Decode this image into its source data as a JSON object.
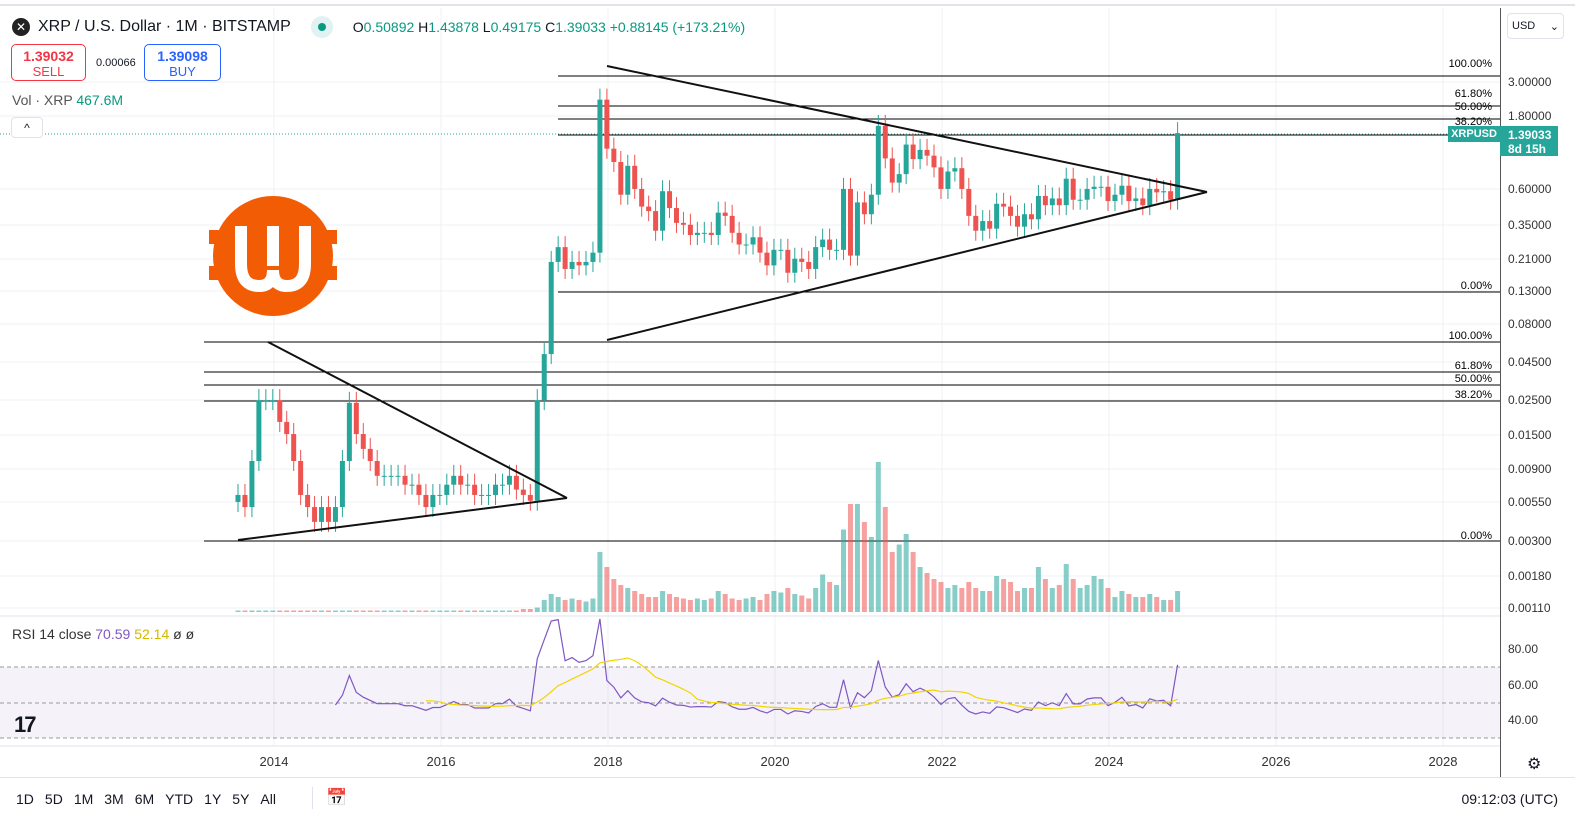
{
  "header": {
    "symbol": "XRP / U.S. Dollar · 1M · BITSTAMP",
    "open_label": "O",
    "open": "0.50892",
    "high_label": "H",
    "high": "1.43878",
    "low_label": "L",
    "low": "0.49175",
    "close_label": "C",
    "close": "1.39033",
    "change": "+0.88145 (+173.21%)"
  },
  "trade": {
    "sell_price": "1.39032",
    "sell_label": "SELL",
    "spread": "0.00066",
    "buy_price": "1.39098",
    "buy_label": "BUY"
  },
  "volume_legend": {
    "label": "Vol · XRP",
    "value": "467.6M"
  },
  "currency": "USD",
  "price_axis": [
    "3.00000",
    "1.80000",
    "0.60000",
    "0.35000",
    "0.21000",
    "0.13000",
    "0.08000",
    "0.04500",
    "0.02500",
    "0.01500",
    "0.00900",
    "0.00550",
    "0.00300",
    "0.00180",
    "0.00110"
  ],
  "price_tag": {
    "symbol": "XRPUSD",
    "price": "1.39033",
    "countdown": "8d 15h"
  },
  "fib_upper": [
    "100.00%",
    "61.80%",
    "50.00%",
    "38.20%",
    "0.00%"
  ],
  "fib_lower": [
    "100.00%",
    "61.80%",
    "50.00%",
    "38.20%",
    "0.00%"
  ],
  "rsi": {
    "label": "RSI 14 close",
    "value": "70.59",
    "ma": "52.14",
    "extra": "ø ø",
    "axis": [
      "80.00",
      "60.00",
      "40.00"
    ]
  },
  "time_axis": [
    "2014",
    "2016",
    "2018",
    "2020",
    "2022",
    "2024",
    "2026",
    "2028"
  ],
  "ranges": [
    "1D",
    "5D",
    "1M",
    "3M",
    "6M",
    "YTD",
    "1Y",
    "5Y",
    "All"
  ],
  "clock": "09:12:03 (UTC)",
  "colors": {
    "up": "#26a69a",
    "down": "#ef5350",
    "rsi": "#7e57c2",
    "rsi_ma": "#f2d600"
  },
  "chart_data": {
    "type": "candlestick",
    "interval": "1M",
    "start": "2013-08",
    "scale": "log",
    "closes": [
      0.006,
      0.005,
      0.01,
      0.025,
      0.025,
      0.025,
      0.018,
      0.015,
      0.01,
      0.006,
      0.005,
      0.004,
      0.005,
      0.004,
      0.005,
      0.01,
      0.024,
      0.015,
      0.012,
      0.01,
      0.008,
      0.008,
      0.008,
      0.008,
      0.007,
      0.007,
      0.006,
      0.005,
      0.006,
      0.006,
      0.007,
      0.008,
      0.007,
      0.007,
      0.006,
      0.006,
      0.006,
      0.007,
      0.007,
      0.008,
      0.0065,
      0.006,
      0.0055,
      0.025,
      0.05,
      0.2,
      0.25,
      0.18,
      0.2,
      0.19,
      0.2,
      0.23,
      2.3,
      1.1,
      0.9,
      0.55,
      0.85,
      0.6,
      0.46,
      0.43,
      0.32,
      0.58,
      0.45,
      0.36,
      0.35,
      0.3,
      0.31,
      0.31,
      0.3,
      0.42,
      0.4,
      0.31,
      0.26,
      0.26,
      0.29,
      0.23,
      0.19,
      0.24,
      0.24,
      0.17,
      0.21,
      0.2,
      0.18,
      0.25,
      0.28,
      0.24,
      0.24,
      0.6,
      0.22,
      0.49,
      0.41,
      0.55,
      1.55,
      0.95,
      0.66,
      0.75,
      1.17,
      0.94,
      1.08,
      0.99,
      0.83,
      0.6,
      0.78,
      0.82,
      0.6,
      0.4,
      0.32,
      0.37,
      0.33,
      0.48,
      0.46,
      0.4,
      0.34,
      0.41,
      0.38,
      0.54,
      0.47,
      0.52,
      0.47,
      0.7,
      0.51,
      0.51,
      0.6,
      0.62,
      0.62,
      0.5,
      0.55,
      0.63,
      0.5,
      0.52,
      0.47,
      0.6,
      0.57,
      0.58,
      0.51,
      1.39033
    ],
    "volume_relative": [
      1,
      1,
      1,
      1,
      1,
      1,
      1,
      1,
      1,
      1,
      1,
      1,
      1,
      1,
      1,
      1,
      1,
      1,
      1,
      1,
      1,
      1,
      1,
      1,
      1,
      1,
      1,
      1,
      1,
      1,
      1,
      1,
      1,
      1,
      1,
      1,
      1,
      1,
      1,
      1,
      1,
      2,
      2,
      3,
      8,
      12,
      10,
      8,
      9,
      8,
      7,
      9,
      40,
      30,
      22,
      18,
      16,
      14,
      12,
      10,
      10,
      14,
      12,
      10,
      9,
      8,
      9,
      8,
      9,
      14,
      12,
      9,
      8,
      9,
      10,
      8,
      12,
      14,
      13,
      16,
      12,
      11,
      9,
      16,
      25,
      20,
      18,
      55,
      72,
      72,
      60,
      50,
      100,
      70,
      40,
      45,
      52,
      40,
      30,
      26,
      22,
      20,
      16,
      18,
      16,
      20,
      16,
      14,
      14,
      24,
      22,
      20,
      14,
      16,
      16,
      30,
      22,
      16,
      18,
      32,
      22,
      16,
      18,
      24,
      22,
      16,
      10,
      14,
      12,
      10,
      10,
      12,
      10,
      8,
      8,
      14
    ]
  }
}
